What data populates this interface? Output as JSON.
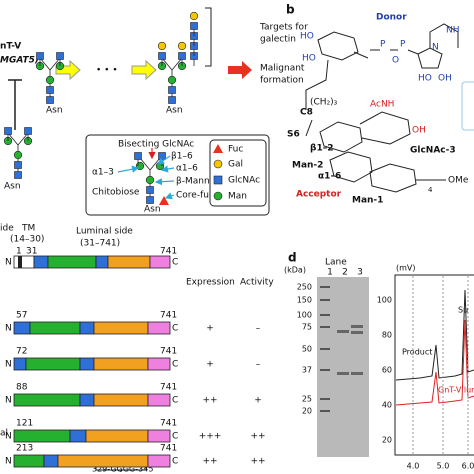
{
  "panel_a": {
    "gene": "nT-V",
    "gene_symbol": "MGAT5)",
    "ellipsis": "• • •",
    "asn": "Asn",
    "targets": [
      "Targets for",
      "galectin"
    ],
    "outcome": [
      "Malignant",
      "formation"
    ],
    "structure_box": {
      "bisecting": "Bisecting GlcNAc",
      "beta16": "β1–6",
      "alpha16": "α1–6",
      "beta_mannose": "β-Mannose",
      "alpha13": "α1–3",
      "chitobiose": "Chitobiose",
      "core_fucose": "Core-fucose",
      "asn": "Asn"
    },
    "legend": [
      "Fuc",
      "Gal",
      "GlcNAc",
      "Man"
    ]
  },
  "panel_b": {
    "label": "b",
    "donor": "Donor",
    "acceptor": "Acceptor",
    "c8": "C8",
    "s6": "S6",
    "linker": "(CH₂)₃",
    "beta12": "β1–2",
    "alpha16": "α1–6",
    "man2": "Man-2",
    "man1": "Man-1",
    "glcnac3": "GlcNAc-3",
    "acnh": "AcNH",
    "ome": "OMe",
    "repeat": "4",
    "ho": "HO",
    "oh": "OH",
    "o": "O",
    "p": "P",
    "n": "N",
    "nh": "NH"
  },
  "panel_c": {
    "side": "ide",
    "tm": "TM",
    "tm_range": "(14–30)",
    "luminal": "Luminal side",
    "luminal_range": "(31–741)",
    "full_start": "1",
    "tm_end": "31",
    "end": "741",
    "n": "N",
    "c": "C",
    "headers": [
      "Expression",
      "Activity"
    ],
    "cut_label": "al",
    "insert": "329-GGGG-345",
    "rows": [
      {
        "start": "57",
        "expression": "+",
        "activity": "–"
      },
      {
        "start": "72",
        "expression": "+",
        "activity": "–"
      },
      {
        "start": "88",
        "expression": "++",
        "activity": "+"
      },
      {
        "start": "121",
        "expression": "+++",
        "activity": "++"
      },
      {
        "start": "213",
        "expression": "++",
        "activity": "++"
      }
    ]
  },
  "panel_d": {
    "label": "d",
    "lane_title": "Lane",
    "lanes": [
      "1",
      "2",
      "3"
    ],
    "kda_unit": "(kDa)",
    "ladder": [
      "250",
      "150",
      "100",
      "75",
      "50",
      "37",
      "25",
      "20"
    ],
    "mv_unit": "(mV)",
    "yticks": [
      "100",
      "80",
      "60",
      "40",
      "20"
    ],
    "xticks": [
      "4.0",
      "5.0",
      "6.0"
    ],
    "product": "Product",
    "substrate": "Su",
    "enzyme": "GnT-V lum"
  }
}
